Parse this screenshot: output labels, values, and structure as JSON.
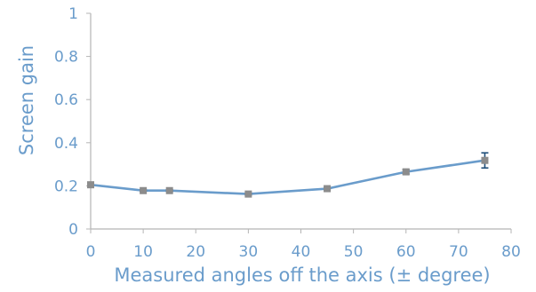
{
  "chart_data": {
    "type": "line",
    "title": "",
    "xlabel": "Measured angles off the axis (± degree)",
    "ylabel": "Screen gain",
    "xlim": [
      0,
      80
    ],
    "ylim": [
      0,
      1
    ],
    "xticks": [
      0,
      10,
      20,
      30,
      40,
      50,
      60,
      70,
      80
    ],
    "yticks": [
      0,
      0.2,
      0.4,
      0.6,
      0.8,
      1
    ],
    "ytick_labels": [
      "0",
      "0.2",
      "0.4",
      "0.6",
      "0.8",
      "1"
    ],
    "grid": false,
    "legend": "none",
    "series": [
      {
        "x": [
          0,
          10,
          15,
          30,
          45,
          60,
          75
        ],
        "y": [
          0.205,
          0.178,
          0.178,
          0.162,
          0.187,
          0.265,
          0.318
        ],
        "error": [
          0.005,
          0.004,
          0.004,
          0.004,
          0.005,
          0.01,
          0.035
        ]
      }
    ],
    "colors": {
      "line": "#6a9ccb",
      "marker": "#8c8c8c",
      "error_bar": "#1f4e79",
      "axis": "#b5b5b5",
      "text": "#6a9ccb"
    }
  }
}
